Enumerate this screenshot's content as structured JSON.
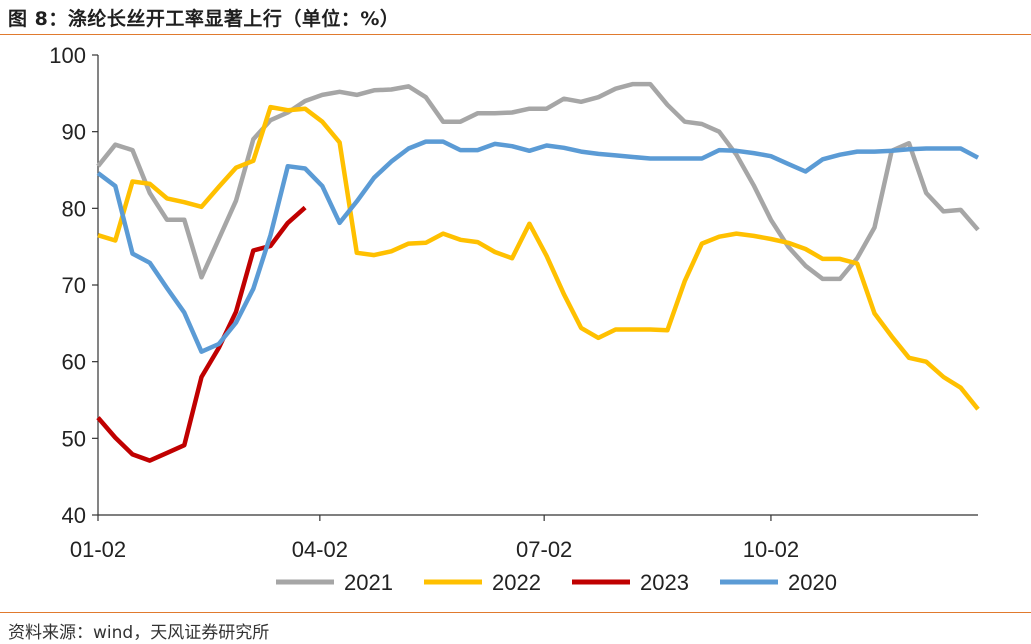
{
  "header": {
    "title": "图 8：涤纶长丝开工率显著上行（单位：%）"
  },
  "footer": {
    "source": "资料来源：wind，天风证券研究所"
  },
  "chart_data": {
    "type": "line",
    "title": "图 8：涤纶长丝开工率显著上行（单位：%）",
    "xlabel": "",
    "ylabel": "",
    "ylim": [
      40,
      100
    ],
    "y_ticks": [
      40,
      50,
      60,
      70,
      80,
      90,
      100
    ],
    "x_tick_labels": [
      "01-02",
      "04-02",
      "07-02",
      "10-02"
    ],
    "x_tick_days": [
      0,
      90,
      181,
      273
    ],
    "x_domain_days": [
      0,
      357
    ],
    "grid": false,
    "legend_position": "bottom",
    "series": [
      {
        "name": "2021",
        "color": "#a6a6a6",
        "x": [
          0,
          7,
          14,
          21,
          28,
          35,
          42,
          49,
          56,
          63,
          70,
          77,
          84,
          91,
          98,
          105,
          112,
          119,
          126,
          133,
          140,
          147,
          154,
          161,
          168,
          175,
          182,
          189,
          196,
          203,
          210,
          217,
          224,
          231,
          238,
          245,
          252,
          259,
          266,
          273,
          280,
          287,
          294,
          301,
          308,
          315,
          322,
          329,
          336,
          343,
          350,
          357
        ],
        "y": [
          85.5,
          88.3,
          87.6,
          82.0,
          78.5,
          78.5,
          71.0,
          76.0,
          81.0,
          89.0,
          91.5,
          92.5,
          94.0,
          94.8,
          95.2,
          94.8,
          95.4,
          95.5,
          95.9,
          94.5,
          91.3,
          91.3,
          92.4,
          92.4,
          92.5,
          93.0,
          93.0,
          94.3,
          93.9,
          94.5,
          95.6,
          96.2,
          96.2,
          93.5,
          91.3,
          91.0,
          90.0,
          87.0,
          83.0,
          78.5,
          75.0,
          72.5,
          70.8,
          70.8,
          73.5,
          77.5,
          87.5,
          88.5,
          82.0,
          79.6,
          79.8,
          77.2
        ]
      },
      {
        "name": "2022",
        "color": "#ffc000",
        "x": [
          0,
          7,
          14,
          21,
          28,
          35,
          42,
          49,
          56,
          63,
          70,
          77,
          84,
          91,
          98,
          105,
          112,
          119,
          126,
          133,
          140,
          147,
          154,
          161,
          168,
          175,
          182,
          189,
          196,
          203,
          210,
          217,
          224,
          231,
          238,
          245,
          252,
          259,
          266,
          273,
          280,
          287,
          294,
          301,
          308,
          315,
          322,
          329,
          336,
          343,
          350,
          357
        ],
        "y": [
          76.5,
          75.8,
          83.5,
          83.2,
          81.3,
          80.8,
          80.2,
          82.8,
          85.3,
          86.2,
          93.2,
          92.8,
          93.0,
          91.3,
          88.6,
          74.2,
          73.9,
          74.4,
          75.4,
          75.5,
          76.7,
          75.9,
          75.6,
          74.3,
          73.5,
          78.0,
          73.8,
          68.8,
          64.4,
          63.1,
          64.2,
          64.2,
          64.2,
          64.1,
          70.5,
          75.4,
          76.3,
          76.7,
          76.4,
          76.0,
          75.5,
          74.7,
          73.4,
          73.4,
          72.8,
          66.3,
          63.3,
          60.5,
          60.0,
          58.0,
          56.6,
          53.8
        ]
      },
      {
        "name": "2023",
        "color": "#c00000",
        "x": [
          0,
          7,
          14,
          21,
          28,
          35,
          42,
          49,
          56,
          63,
          70,
          77,
          84
        ],
        "y": [
          52.7,
          50.1,
          47.9,
          47.1,
          48.1,
          49.1,
          58.0,
          61.8,
          66.5,
          74.5,
          75.1,
          78.1,
          80.1
        ]
      },
      {
        "name": "2020",
        "color": "#5b9bd5",
        "x": [
          0,
          7,
          14,
          21,
          28,
          35,
          42,
          49,
          56,
          63,
          70,
          77,
          84,
          91,
          98,
          105,
          112,
          119,
          126,
          133,
          140,
          147,
          154,
          161,
          168,
          175,
          182,
          189,
          196,
          203,
          210,
          217,
          224,
          231,
          238,
          245,
          252,
          259,
          266,
          273,
          280,
          287,
          294,
          301,
          308,
          315,
          322,
          329,
          336,
          343,
          350,
          357
        ],
        "y": [
          84.6,
          82.9,
          74.1,
          72.9,
          69.6,
          66.4,
          61.3,
          62.3,
          65.1,
          69.5,
          76.5,
          85.5,
          85.2,
          82.9,
          78.1,
          80.9,
          84.0,
          86.1,
          87.8,
          88.7,
          88.7,
          87.6,
          87.6,
          88.4,
          88.1,
          87.5,
          88.2,
          87.9,
          87.4,
          87.1,
          86.9,
          86.7,
          86.5,
          86.5,
          86.5,
          86.5,
          87.6,
          87.5,
          87.2,
          86.8,
          85.8,
          84.8,
          86.4,
          87.0,
          87.4,
          87.4,
          87.5,
          87.7,
          87.8,
          87.8,
          87.8,
          86.6
        ]
      }
    ]
  }
}
